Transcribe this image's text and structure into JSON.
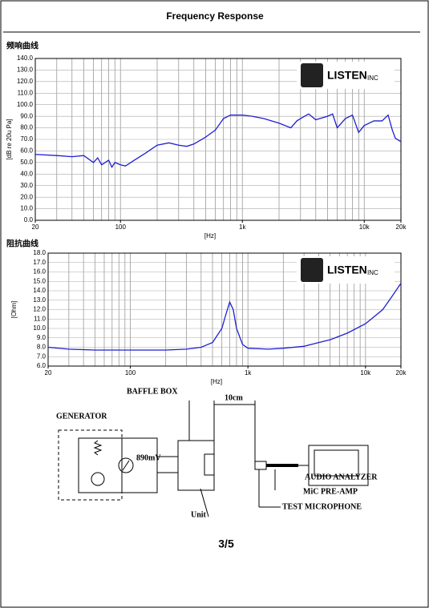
{
  "header": {
    "title": "Frequency    Response"
  },
  "chart_data": [
    {
      "type": "line",
      "title": "频响曲线",
      "x_label": "[Hz]",
      "y_label": "[dB re 20u Pa]",
      "logo": "LISTEN",
      "logo_suffix": "INC",
      "log_x": true,
      "x": [
        20,
        30,
        40,
        50,
        60,
        65,
        70,
        80,
        85,
        90,
        100,
        110,
        130,
        160,
        200,
        250,
        300,
        350,
        400,
        500,
        600,
        700,
        800,
        1000,
        1200,
        1500,
        2000,
        2500,
        2800,
        3000,
        3500,
        4000,
        5000,
        5500,
        6000,
        7000,
        8000,
        9000,
        10000,
        12000,
        14000,
        15700,
        17000,
        18000,
        20000
      ],
      "series": [
        {
          "color": "#1f1fd0",
          "values": [
            57,
            56,
            55,
            56,
            50,
            54,
            48,
            52,
            46,
            50,
            48,
            47,
            52,
            58,
            65,
            67,
            65,
            64,
            66,
            72,
            78,
            88,
            91,
            91,
            90,
            88,
            84,
            80,
            86,
            88,
            92,
            87,
            90,
            92,
            80,
            88,
            91,
            76,
            82,
            86,
            86,
            91,
            78,
            71,
            68
          ]
        }
      ],
      "xlim": [
        20,
        20000
      ],
      "ylim": [
        0,
        140
      ],
      "xticks": [
        20,
        100,
        {
          "value": 1000,
          "label": "1k"
        },
        {
          "value": 10000,
          "label": "10k"
        },
        {
          "value": 20000,
          "label": "20k"
        }
      ],
      "yticks": [
        {
          "value": 0,
          "label": "0.0"
        },
        {
          "value": 10,
          "label": "10.0"
        },
        {
          "value": 20,
          "label": "20.0"
        },
        {
          "value": 30,
          "label": "30.0"
        },
        {
          "value": 40,
          "label": "40.0"
        },
        {
          "value": 50,
          "label": "50.0"
        },
        {
          "value": 60,
          "label": "60.0"
        },
        {
          "value": 70,
          "label": "70.0"
        },
        {
          "value": 80,
          "label": "80.0"
        },
        {
          "value": 90,
          "label": "90.0"
        },
        {
          "value": 100,
          "label": "100.0"
        },
        {
          "value": 110,
          "label": "110.0"
        },
        {
          "value": 120,
          "label": "120.0"
        },
        {
          "value": 130,
          "label": "130.0"
        },
        {
          "value": 140,
          "label": "140.0"
        }
      ]
    },
    {
      "type": "line",
      "title": "阻抗曲线",
      "x_label": "[Hz]",
      "y_label": "[Ohm]",
      "logo": "LISTEN",
      "logo_suffix": "INC",
      "log_x": true,
      "x": [
        20,
        30,
        50,
        100,
        200,
        300,
        400,
        500,
        600,
        650,
        700,
        750,
        800,
        900,
        1000,
        1500,
        2000,
        3000,
        4000,
        5000,
        7000,
        10000,
        14000,
        17000,
        20000
      ],
      "series": [
        {
          "color": "#1f1fd0",
          "values": [
            8.0,
            7.8,
            7.7,
            7.7,
            7.7,
            7.8,
            8.0,
            8.5,
            10,
            11.5,
            12.8,
            12.0,
            10,
            8.3,
            7.9,
            7.8,
            7.9,
            8.1,
            8.5,
            8.8,
            9.5,
            10.5,
            12,
            13.5,
            14.8
          ]
        }
      ],
      "xlim": [
        20,
        20000
      ],
      "ylim": [
        6,
        18
      ],
      "xticks": [
        20,
        100,
        {
          "value": 1000,
          "label": "1k"
        },
        {
          "value": 10000,
          "label": "10k"
        },
        {
          "value": 20000,
          "label": "20k"
        }
      ],
      "yticks": [
        {
          "value": 6,
          "label": "6.0"
        },
        {
          "value": 7,
          "label": "7.0"
        },
        {
          "value": 8,
          "label": "8.0"
        },
        {
          "value": 9,
          "label": "9.0"
        },
        {
          "value": 10,
          "label": "10.0"
        },
        {
          "value": 11,
          "label": "11.0"
        },
        {
          "value": 12,
          "label": "12.0"
        },
        {
          "value": 13,
          "label": "13.0"
        },
        {
          "value": 14,
          "label": "14.0"
        },
        {
          "value": 15,
          "label": "15.0"
        },
        {
          "value": 16,
          "label": "16.0"
        },
        {
          "value": 17,
          "label": "17.0"
        },
        {
          "value": 18,
          "label": "18.0"
        }
      ]
    }
  ],
  "diagram": {
    "baffle": "BAFFLE BOX",
    "distance": "10cm",
    "generator": "GENERATOR",
    "voltage": "890mV",
    "analyzer": "AUDIO ANALYZER",
    "preamp": "MiC PRE-AMP",
    "microphone": "TEST MICROPHONE",
    "unit": "Unit"
  },
  "footer": {
    "page": "3/5"
  }
}
